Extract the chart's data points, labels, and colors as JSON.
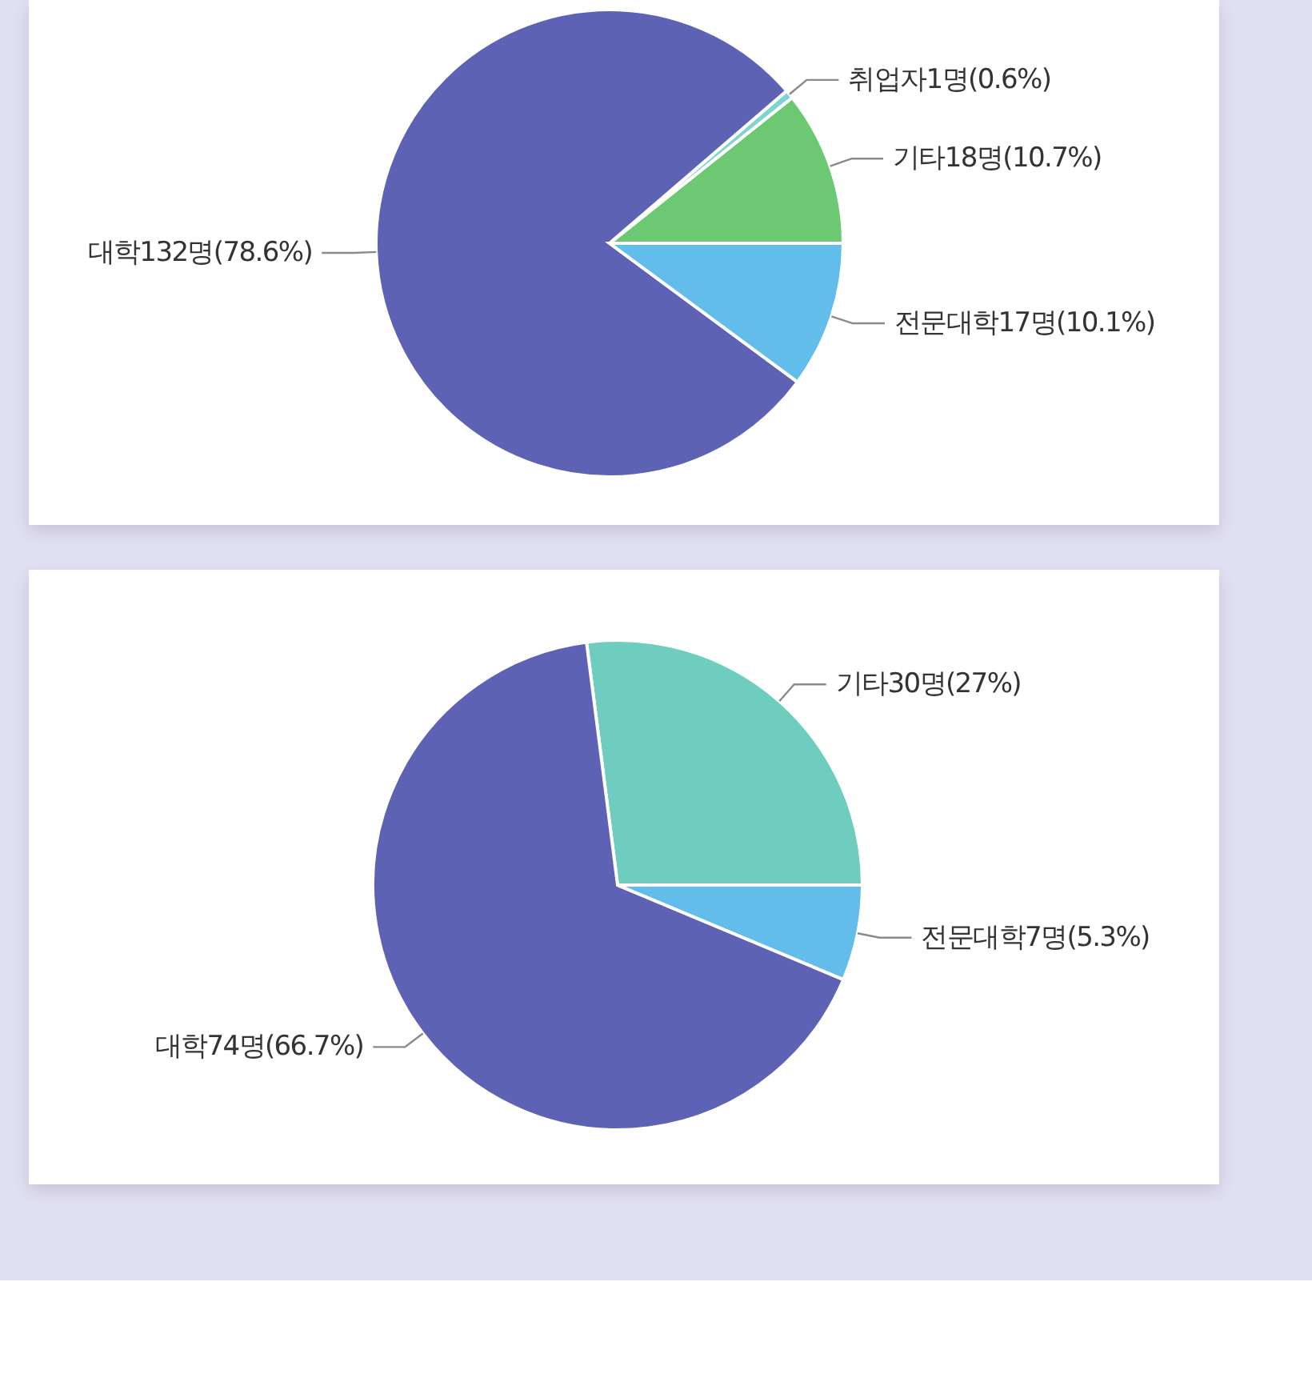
{
  "chart_data": [
    {
      "type": "pie",
      "categories": [
        "기타",
        "취업자",
        "대학",
        "전문대학"
      ],
      "values": [
        18,
        1,
        132,
        17
      ],
      "colors": [
        "#6cc872",
        "#7fd3d0",
        "#5d62b5",
        "#63bdea"
      ],
      "value_labels": [
        "18명(10.7%)",
        "1명(0.6%)",
        "132명(78.6%)",
        "17명(10.1%)"
      ]
    },
    {
      "type": "pie",
      "categories": [
        "기타",
        "대학",
        "전문대학"
      ],
      "values": [
        30,
        74,
        7
      ],
      "colors": [
        "#6ecdbe",
        "#5d62b5",
        "#63bdea"
      ],
      "value_labels": [
        "30명(27%)",
        "74명(66.7%)",
        "7명(5.3%)"
      ]
    }
  ]
}
